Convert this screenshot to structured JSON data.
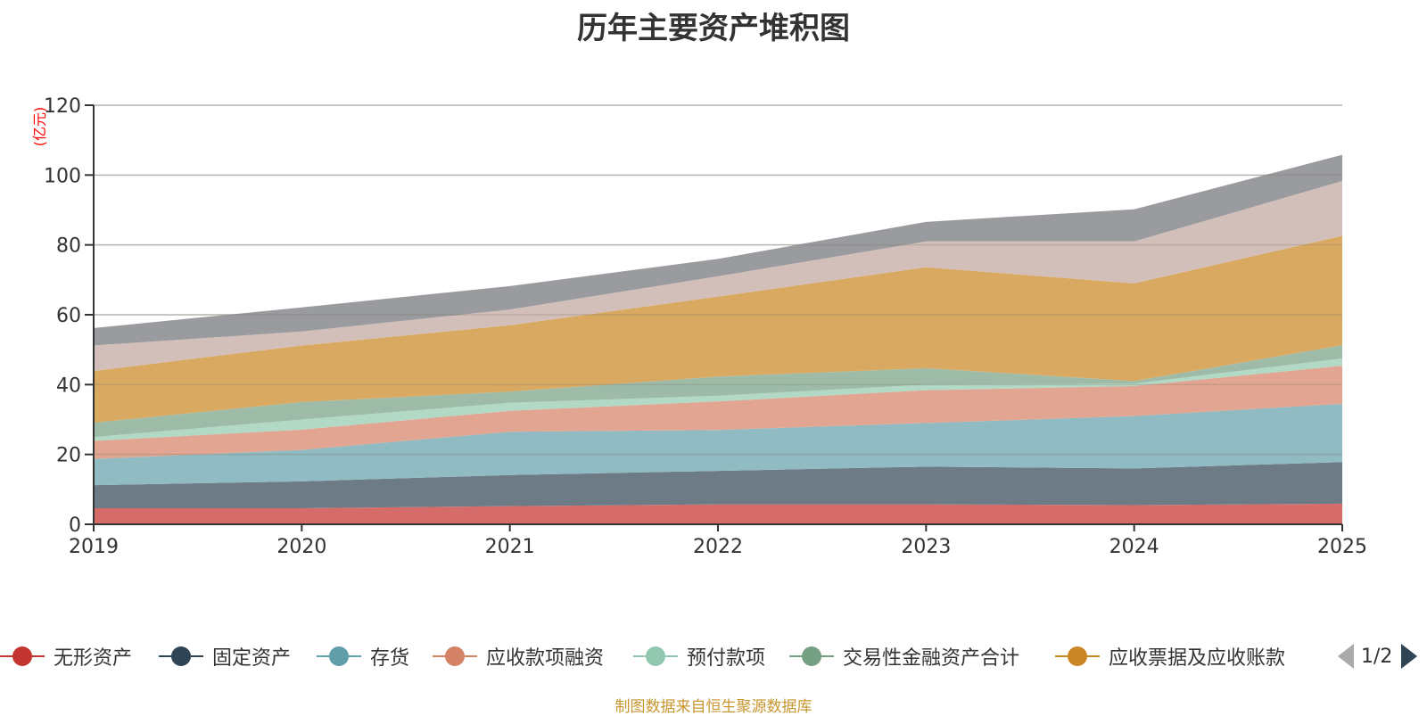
{
  "chart_data": {
    "type": "area",
    "stacked": true,
    "title": "历年主要资产堆积图",
    "unit_label": "(亿元)",
    "xlabel": "",
    "ylabel": "(亿元)",
    "x": [
      "2019",
      "2020",
      "2021",
      "2022",
      "2023",
      "2024",
      "2025"
    ],
    "ylim": [
      0,
      120
    ],
    "yticks": [
      0,
      20,
      40,
      60,
      80,
      100,
      120
    ],
    "grid": true,
    "legend_position": "bottom",
    "series": [
      {
        "name": "无形资产",
        "color": "#c23531",
        "fill": "#d66c6a",
        "values": [
          4.6,
          4.6,
          5.2,
          5.7,
          5.7,
          5.5,
          5.9
        ]
      },
      {
        "name": "固定资产",
        "color": "#2f4554",
        "fill": "#6d7b86",
        "values": [
          6.6,
          7.7,
          8.9,
          9.6,
          10.8,
          10.5,
          11.9
        ]
      },
      {
        "name": "存货",
        "color": "#61a0a8",
        "fill": "#90bbc2",
        "values": [
          7.5,
          9.0,
          12.4,
          11.7,
          12.5,
          15.0,
          16.7
        ]
      },
      {
        "name": "应收款项融资",
        "color": "#d48265",
        "fill": "#e1a591",
        "values": [
          5.2,
          5.8,
          6.0,
          8.2,
          9.4,
          8.6,
          10.9
        ]
      },
      {
        "name": "预付款项",
        "color": "#91c7ae",
        "fill": "#b2d8c6",
        "values": [
          1.1,
          2.9,
          2.3,
          1.6,
          1.6,
          0.7,
          2.1
        ]
      },
      {
        "name": "交易性金融资产合计",
        "color": "#749f83",
        "fill": "#9ebba8",
        "values": [
          4.1,
          5.0,
          3.2,
          5.5,
          4.7,
          0.7,
          3.8
        ]
      },
      {
        "name": "应收票据及应收账款",
        "color": "#ca8622",
        "fill": "#d9a962",
        "values": [
          14.8,
          16.2,
          19.0,
          22.9,
          28.9,
          28.0,
          31.3
        ]
      },
      {
        "name": "",
        "color": "#bda29a",
        "fill": "#d2bfb9",
        "values": [
          7.3,
          4.0,
          4.5,
          5.8,
          7.4,
          12.0,
          15.7
        ]
      },
      {
        "name": "",
        "color": "#6e7074",
        "fill": "#9a9b9e",
        "values": [
          5.0,
          6.9,
          6.7,
          5.0,
          5.6,
          9.2,
          7.5
        ]
      }
    ]
  },
  "legend": {
    "items": [
      {
        "label": "无形资产",
        "color": "#c23531"
      },
      {
        "label": "固定资产",
        "color": "#2f4554"
      },
      {
        "label": "存货",
        "color": "#61a0a8"
      },
      {
        "label": "应收款项融资",
        "color": "#d48265"
      },
      {
        "label": "预付款项",
        "color": "#91c7ae"
      },
      {
        "label": "交易性金融资产合计",
        "color": "#749f83"
      },
      {
        "label": "应收票据及应收账款",
        "color": "#ca8622"
      }
    ],
    "page": "1/2"
  },
  "footer": "制图数据来自恒生聚源数据库"
}
